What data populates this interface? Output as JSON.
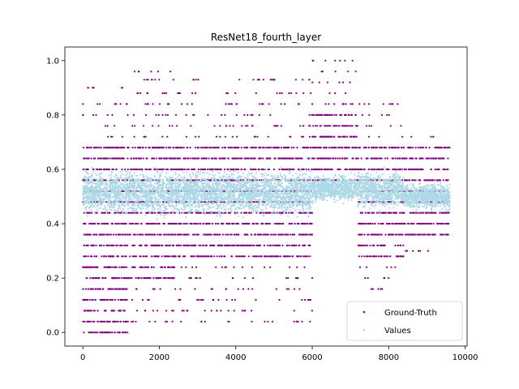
{
  "chart_data": {
    "type": "scatter",
    "title": "ResNet18_fourth_layer",
    "xlabel": "",
    "ylabel": "",
    "xlim": [
      -470,
      10050
    ],
    "ylim": [
      -0.05,
      1.05
    ],
    "x_ticks": [
      0,
      2000,
      4000,
      6000,
      8000,
      10000
    ],
    "x_tick_labels": [
      "0",
      "2000",
      "4000",
      "6000",
      "8000",
      "10000"
    ],
    "y_ticks": [
      0.0,
      0.2,
      0.4,
      0.6,
      0.8,
      1.0
    ],
    "y_tick_labels": [
      "0.0",
      "0.2",
      "0.4",
      "0.6",
      "0.8",
      "1.0"
    ],
    "grid": false,
    "legend_position": "lower-right",
    "series": [
      {
        "name": "Ground-Truth",
        "color": "#800080",
        "segments": [
          {
            "x_range": [
              0,
              1200
            ],
            "levels": [
              0.0,
              0.04,
              0.08,
              0.12,
              0.16,
              0.2,
              0.24,
              0.28,
              0.32,
              0.36,
              0.4,
              0.44,
              0.48,
              0.52,
              0.56,
              0.6,
              0.64,
              0.68
            ],
            "sparse_levels": [
              0.72,
              0.76,
              0.8,
              0.84,
              0.9
            ]
          },
          {
            "x_range": [
              1200,
              2400
            ],
            "levels": [
              0.2,
              0.24,
              0.28,
              0.32,
              0.36,
              0.4,
              0.44,
              0.48,
              0.52,
              0.56,
              0.6,
              0.64,
              0.68
            ],
            "sparse_levels": [
              0.04,
              0.08,
              0.12,
              0.16,
              0.72,
              0.76,
              0.8,
              0.84,
              0.88,
              0.93,
              0.96
            ]
          },
          {
            "x_range": [
              2400,
              6000
            ],
            "levels": [
              0.28,
              0.32,
              0.36,
              0.4,
              0.44,
              0.48,
              0.52,
              0.56,
              0.6,
              0.64,
              0.68
            ],
            "sparse_levels": [
              0.04,
              0.08,
              0.12,
              0.16,
              0.2,
              0.24,
              0.72,
              0.76,
              0.8,
              0.84,
              0.88,
              0.93
            ]
          },
          {
            "x_range": [
              6000,
              7200
            ],
            "levels": [
              0.56,
              0.6,
              0.64,
              0.68,
              0.72,
              0.76,
              0.8
            ],
            "sparse_levels": [
              0.84,
              0.88,
              0.92,
              0.96,
              1.0,
              0.52
            ]
          },
          {
            "x_range": [
              7200,
              8400
            ],
            "levels": [
              0.28,
              0.32,
              0.36,
              0.4,
              0.44,
              0.48,
              0.52,
              0.56,
              0.6,
              0.64,
              0.68
            ],
            "sparse_levels": [
              0.16,
              0.2,
              0.24,
              0.72,
              0.76,
              0.8,
              0.84
            ]
          },
          {
            "x_range": [
              8400,
              9600
            ],
            "levels": [
              0.36,
              0.4,
              0.44,
              0.48,
              0.52,
              0.56,
              0.6,
              0.64,
              0.68
            ],
            "sparse_levels": [
              0.3,
              0.72
            ]
          }
        ]
      },
      {
        "name": "Values",
        "color": "#add8e6",
        "segments": [
          {
            "x_range": [
              0,
              6000
            ],
            "y_range": [
              0.43,
              0.6
            ]
          },
          {
            "x_range": [
              6000,
              7200
            ],
            "y_range": [
              0.48,
              0.58
            ]
          },
          {
            "x_range": [
              7200,
              8400
            ],
            "y_range": [
              0.45,
              0.6
            ]
          },
          {
            "x_range": [
              8400,
              9600
            ],
            "y_range": [
              0.45,
              0.55
            ]
          }
        ]
      }
    ]
  }
}
